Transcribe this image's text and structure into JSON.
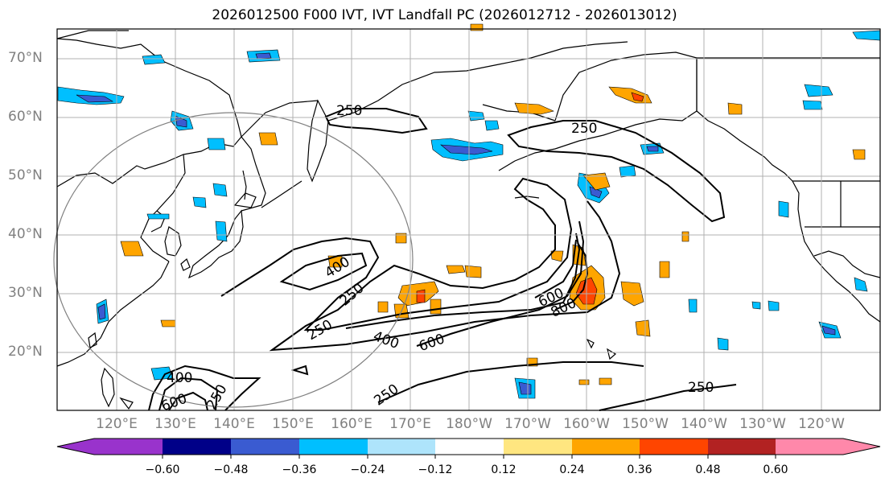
{
  "title": "2026012500 F000 IVT, IVT Landfall PC (2026012712 - 2026013012)",
  "lat_labels": [
    "70°N",
    "60°N",
    "50°N",
    "40°N",
    "30°N",
    "20°N"
  ],
  "lon_labels": [
    "120°E",
    "130°E",
    "140°E",
    "150°E",
    "160°E",
    "170°E",
    "180°W",
    "170°W",
    "160°W",
    "150°W",
    "140°W",
    "130°W",
    "120°W"
  ],
  "contour_labels": [
    "250",
    "250",
    "400",
    "250",
    "250",
    "400",
    "600",
    "600",
    "800",
    "400",
    "600",
    "250",
    "250",
    "250"
  ],
  "colorbar": {
    "colors": [
      "#9933cc",
      "#000088",
      "#3a5bd1",
      "#00bfff",
      "#aee4fb",
      "#ffffff",
      "#ffe680",
      "#ffa500",
      "#ff4500",
      "#b22222",
      "#ff88aa"
    ],
    "tick_labels": [
      "−0.60",
      "−0.48",
      "−0.36",
      "−0.24",
      "−0.12",
      "0.12",
      "0.24",
      "0.36",
      "0.48",
      "0.60"
    ]
  }
}
